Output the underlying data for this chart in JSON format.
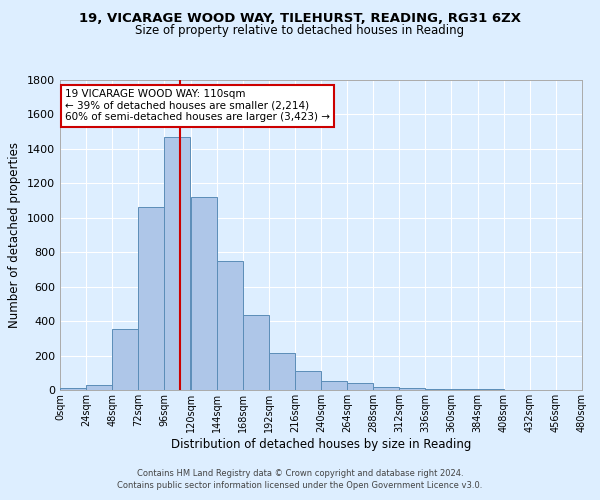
{
  "title1": "19, VICARAGE WOOD WAY, TILEHURST, READING, RG31 6ZX",
  "title2": "Size of property relative to detached houses in Reading",
  "xlabel": "Distribution of detached houses by size in Reading",
  "ylabel": "Number of detached properties",
  "footer1": "Contains HM Land Registry data © Crown copyright and database right 2024.",
  "footer2": "Contains public sector information licensed under the Open Government Licence v3.0.",
  "bar_edges": [
    0,
    24,
    48,
    72,
    96,
    120,
    144,
    168,
    192,
    216,
    240,
    264,
    288,
    312,
    336,
    360,
    384,
    408,
    432,
    456,
    480
  ],
  "bar_heights": [
    10,
    30,
    355,
    1060,
    1470,
    1120,
    750,
    435,
    215,
    110,
    55,
    40,
    20,
    12,
    8,
    5,
    3,
    2,
    1,
    1
  ],
  "bar_color": "#aec6e8",
  "bar_edgecolor": "#5b8db8",
  "bg_color": "#ddeeff",
  "grid_color": "#ffffff",
  "vline_x": 110,
  "vline_color": "#cc0000",
  "annotation_line1": "19 VICARAGE WOOD WAY: 110sqm",
  "annotation_line2": "← 39% of detached houses are smaller (2,214)",
  "annotation_line3": "60% of semi-detached houses are larger (3,423) →",
  "annotation_edgecolor": "#cc0000",
  "xlim": [
    0,
    480
  ],
  "ylim": [
    0,
    1800
  ],
  "xtick_labels": [
    "0sqm",
    "24sqm",
    "48sqm",
    "72sqm",
    "96sqm",
    "120sqm",
    "144sqm",
    "168sqm",
    "192sqm",
    "216sqm",
    "240sqm",
    "264sqm",
    "288sqm",
    "312sqm",
    "336sqm",
    "360sqm",
    "384sqm",
    "408sqm",
    "432sqm",
    "456sqm",
    "480sqm"
  ],
  "xtick_positions": [
    0,
    24,
    48,
    72,
    96,
    120,
    144,
    168,
    192,
    216,
    240,
    264,
    288,
    312,
    336,
    360,
    384,
    408,
    432,
    456,
    480
  ]
}
